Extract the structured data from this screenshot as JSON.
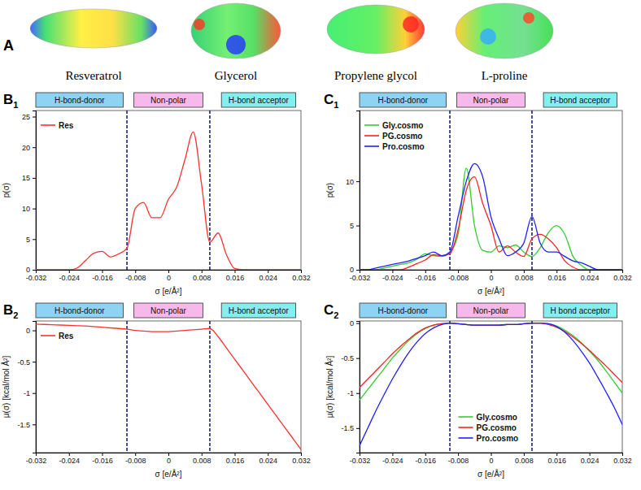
{
  "panel_a": {
    "label": "A",
    "molecules": [
      "Resveratrol",
      "Glycerol",
      "Propylene glycol",
      "L-proline"
    ]
  },
  "chart_data": [
    {
      "type": "line",
      "panel": "B",
      "panel_index": "1",
      "regions": [
        "H-bond-donor",
        "Non-polar",
        "H-bond acceptor"
      ],
      "thresholds": [
        -0.01,
        0.01
      ],
      "x_label": "σ [e/Å²]",
      "y_label": "p(σ)",
      "x": [
        -0.032,
        -0.03,
        -0.028,
        -0.026,
        -0.024,
        -0.022,
        -0.02,
        -0.018,
        -0.016,
        -0.014,
        -0.012,
        -0.01,
        -0.008,
        -0.006,
        -0.004,
        -0.002,
        0,
        0.002,
        0.004,
        0.006,
        0.008,
        0.01,
        0.012,
        0.014,
        0.016,
        0.018,
        0.02,
        0.022,
        0.024,
        0.026,
        0.028,
        0.03,
        0.032
      ],
      "series": [
        {
          "name": "Res",
          "color": "#ff3030",
          "values": [
            0,
            0,
            0,
            0,
            0,
            0.3,
            1.5,
            2.7,
            3,
            2.1,
            2.6,
            3.5,
            10,
            11,
            8.5,
            8.5,
            11.5,
            13.5,
            18,
            22.5,
            14,
            4.5,
            6,
            2.5,
            0.2,
            0,
            0,
            0,
            0,
            0,
            0,
            0,
            0
          ]
        }
      ],
      "xlim": [
        -0.032,
        0.032
      ],
      "xticks": [
        -0.032,
        -0.024,
        -0.016,
        -0.008,
        0,
        0.008,
        0.016,
        0.024,
        0.032
      ],
      "ylim": [
        0,
        26
      ],
      "yticks": [
        0,
        5,
        10,
        15,
        20,
        25
      ],
      "legend": "top left"
    },
    {
      "type": "line",
      "panel": "B",
      "panel_index": "2",
      "regions": [
        "H-bond-donor",
        "Non-polar",
        "H-bond acceptor"
      ],
      "thresholds": [
        -0.01,
        0.01
      ],
      "x_label": "σ [e/Å²]",
      "y_label": "μ(σ) [kcal/mol Å²]",
      "x": [
        -0.032,
        -0.03,
        -0.028,
        -0.026,
        -0.024,
        -0.022,
        -0.02,
        -0.018,
        -0.016,
        -0.014,
        -0.012,
        -0.01,
        -0.008,
        -0.006,
        -0.004,
        -0.002,
        0,
        0.002,
        0.004,
        0.006,
        0.008,
        0.01,
        0.012,
        0.014,
        0.016,
        0.018,
        0.02,
        0.022,
        0.024,
        0.026,
        0.028,
        0.03,
        0.032
      ],
      "series": [
        {
          "name": "Res",
          "color": "#ff3030",
          "values": [
            0.1,
            0.095,
            0.09,
            0.085,
            0.08,
            0.075,
            0.07,
            0.06,
            0.05,
            0.04,
            0.03,
            0.02,
            0,
            -0.01,
            -0.02,
            -0.02,
            -0.02,
            -0.01,
            0,
            0.01,
            0.02,
            0.03,
            -0.1,
            -0.28,
            -0.46,
            -0.64,
            -0.82,
            -1,
            -1.18,
            -1.36,
            -1.54,
            -1.72,
            -1.9
          ]
        }
      ],
      "xlim": [
        -0.032,
        0.032
      ],
      "xticks": [
        -0.032,
        -0.024,
        -0.016,
        -0.008,
        0,
        0.008,
        0.016,
        0.024,
        0.032
      ],
      "ylim": [
        -1.95,
        0.15
      ],
      "yticks": [
        0,
        -0.5,
        -1,
        -1.5
      ],
      "legend": "top left"
    },
    {
      "type": "line",
      "panel": "C",
      "panel_index": "1",
      "regions": [
        "H-bond-donor",
        "Non-polar",
        "H-bond acceptor"
      ],
      "thresholds": [
        -0.01,
        0.01
      ],
      "x_label": "σ [e/Å²]",
      "y_label": "p(σ)",
      "x": [
        -0.032,
        -0.03,
        -0.028,
        -0.026,
        -0.024,
        -0.022,
        -0.02,
        -0.018,
        -0.016,
        -0.014,
        -0.012,
        -0.01,
        -0.008,
        -0.006,
        -0.004,
        -0.002,
        0,
        0.002,
        0.004,
        0.006,
        0.008,
        0.01,
        0.012,
        0.014,
        0.016,
        0.018,
        0.02,
        0.022,
        0.024,
        0.026,
        0.028,
        0.03,
        0.032
      ],
      "series": [
        {
          "name": "Gly.cosmo",
          "color": "#33cc33",
          "values": [
            0,
            0,
            0,
            0.2,
            0.4,
            0.6,
            0.8,
            1.2,
            1.8,
            1.6,
            1.5,
            2,
            4,
            11.5,
            5,
            2.2,
            2,
            2.7,
            2.5,
            2.8,
            2,
            1.5,
            2.5,
            4.2,
            5,
            4,
            1.5,
            0.5,
            0,
            0,
            0,
            0,
            0
          ]
        },
        {
          "name": "PG.cosmo",
          "color": "#ff2020",
          "values": [
            0,
            0,
            0,
            0,
            0,
            0,
            0.3,
            0.7,
            1.1,
            1.7,
            1.6,
            1.8,
            4.5,
            9,
            10.5,
            7.5,
            5,
            2,
            2.7,
            2,
            1.5,
            3.5,
            4,
            3.5,
            2.5,
            1,
            0.3,
            0,
            0,
            0,
            0,
            0,
            0
          ]
        },
        {
          "name": "Pro.cosmo",
          "color": "#2020ff",
          "values": [
            0,
            0,
            0.2,
            0.4,
            0.6,
            0.8,
            1,
            1.3,
            1.6,
            2,
            1.6,
            2,
            6,
            10,
            12,
            10.5,
            6,
            3.5,
            1.6,
            2,
            3,
            6,
            3,
            2,
            2,
            1.5,
            1,
            0.8,
            0.4,
            0,
            0,
            0,
            0
          ]
        }
      ],
      "xlim": [
        -0.032,
        0.032
      ],
      "xticks": [
        -0.032,
        -0.024,
        -0.016,
        -0.008,
        0,
        0.008,
        0.016,
        0.024,
        0.032
      ],
      "ylim": [
        0,
        18
      ],
      "yticks": [
        0,
        5,
        10
      ],
      "legend": "top left"
    },
    {
      "type": "line",
      "panel": "C",
      "panel_index": "2",
      "regions": [
        "H-bond-donor",
        "Non-polar",
        "H bond acceptor"
      ],
      "thresholds": [
        -0.01,
        0.01
      ],
      "x_label": "σ [e/Å²]",
      "y_label": "μ(σ) [kcal/mol Å²]",
      "x": [
        -0.032,
        -0.03,
        -0.028,
        -0.026,
        -0.024,
        -0.022,
        -0.02,
        -0.018,
        -0.016,
        -0.014,
        -0.012,
        -0.01,
        -0.008,
        -0.006,
        -0.004,
        -0.002,
        0,
        0.002,
        0.004,
        0.006,
        0.008,
        0.01,
        0.012,
        0.014,
        0.016,
        0.018,
        0.02,
        0.022,
        0.024,
        0.026,
        0.028,
        0.03,
        0.032
      ],
      "series": [
        {
          "name": "Gly.cosmo",
          "color": "#33cc33",
          "values": [
            -1.1,
            -0.95,
            -0.8,
            -0.65,
            -0.5,
            -0.37,
            -0.25,
            -0.15,
            -0.08,
            -0.03,
            -0.01,
            0,
            -0.01,
            -0.02,
            -0.03,
            -0.03,
            -0.03,
            -0.03,
            -0.02,
            -0.02,
            -0.01,
            0,
            0,
            -0.01,
            -0.04,
            -0.1,
            -0.18,
            -0.28,
            -0.4,
            -0.53,
            -0.68,
            -0.84,
            -1
          ]
        },
        {
          "name": "PG.cosmo",
          "color": "#ff2020",
          "values": [
            -0.92,
            -0.8,
            -0.68,
            -0.56,
            -0.44,
            -0.33,
            -0.23,
            -0.14,
            -0.07,
            -0.03,
            -0.01,
            0,
            -0.01,
            -0.02,
            -0.03,
            -0.03,
            -0.03,
            -0.03,
            -0.02,
            -0.02,
            -0.01,
            0,
            0,
            -0.02,
            -0.06,
            -0.12,
            -0.2,
            -0.29,
            -0.39,
            -0.5,
            -0.61,
            -0.73,
            -0.85
          ]
        },
        {
          "name": "Pro.cosmo",
          "color": "#2020ff",
          "values": [
            -1.75,
            -1.5,
            -1.25,
            -1.02,
            -0.8,
            -0.6,
            -0.42,
            -0.27,
            -0.15,
            -0.07,
            -0.02,
            0,
            -0.01,
            -0.02,
            -0.03,
            -0.03,
            -0.03,
            -0.03,
            -0.02,
            -0.02,
            -0.01,
            0,
            0,
            -0.01,
            -0.05,
            -0.13,
            -0.25,
            -0.4,
            -0.57,
            -0.77,
            -0.98,
            -1.2,
            -1.45
          ]
        }
      ],
      "xlim": [
        -0.032,
        0.032
      ],
      "xticks": [
        -0.032,
        -0.024,
        -0.016,
        -0.008,
        0,
        0.008,
        0.016,
        0.024,
        0.032
      ],
      "ylim": [
        -1.85,
        0.03
      ],
      "yticks": [
        0,
        -0.5,
        -1,
        -1.5
      ],
      "legend": "bottom"
    }
  ]
}
